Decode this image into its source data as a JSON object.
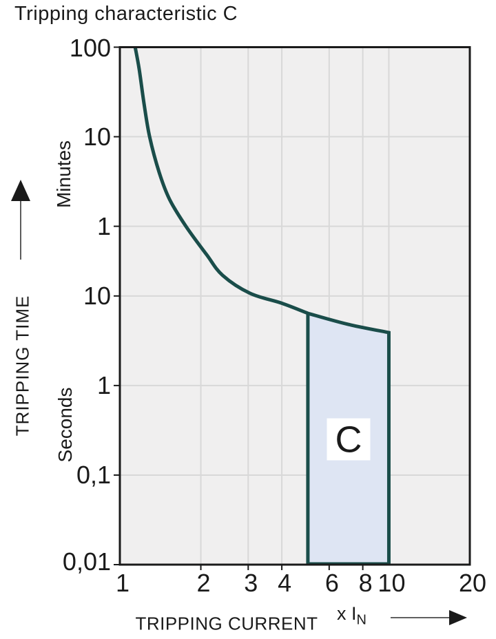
{
  "title": "Tripping characteristic C",
  "chart_data": {
    "type": "line",
    "title": "Tripping characteristic C",
    "xlabel": "TRIPPING CURRENT",
    "x_unit": {
      "prefix": "x I",
      "sub": "N"
    },
    "ylabel": "TRIPPING TIME",
    "y_unit_upper": "Minutes",
    "y_unit_lower": "Seconds",
    "x_scale": "log",
    "y_scale": "log",
    "x_range": [
      1,
      20
    ],
    "y_range_seconds": [
      0.01,
      6000
    ],
    "x_ticks": [
      {
        "label": "1",
        "v": 1
      },
      {
        "label": "2",
        "v": 2
      },
      {
        "label": "3",
        "v": 3
      },
      {
        "label": "4",
        "v": 4
      },
      {
        "label": "6",
        "v": 6
      },
      {
        "label": "8",
        "v": 8
      },
      {
        "label": "10",
        "v": 10
      },
      {
        "label": "20",
        "v": 20
      }
    ],
    "y_ticks": [
      {
        "label": "100",
        "t": 6000
      },
      {
        "label": "10",
        "t": 600
      },
      {
        "label": "1",
        "t": 60
      },
      {
        "label": "10",
        "t": 10
      },
      {
        "label": "1",
        "t": 1
      },
      {
        "label": "0,1",
        "t": 0.1
      },
      {
        "label": "0,01",
        "t": 0.01
      }
    ],
    "x_gridlines": [
      2,
      3,
      4,
      6,
      8,
      10
    ],
    "y_gridlines": [
      0.1,
      1,
      10,
      60,
      600
    ],
    "x_bottom_stub_ticks": [
      2,
      3,
      4,
      6,
      8
    ],
    "curve": {
      "name": "thermal-trip-curve",
      "points": [
        [
          1.14,
          6000
        ],
        [
          1.18,
          3400
        ],
        [
          1.23,
          1400
        ],
        [
          1.29,
          600
        ],
        [
          1.4,
          240
        ],
        [
          1.53,
          120
        ],
        [
          1.76,
          60
        ],
        [
          2.1,
          29
        ],
        [
          2.41,
          17
        ],
        [
          3.05,
          10.7
        ],
        [
          4.0,
          8.3
        ],
        [
          5.0,
          6.4
        ]
      ]
    },
    "band": {
      "label": "C",
      "x_from": 5,
      "x_to": 10,
      "t_bottom": 0.01,
      "top_points": [
        [
          5,
          6.4
        ],
        [
          7,
          4.85
        ],
        [
          10,
          3.9
        ]
      ]
    },
    "colors": {
      "curve": "#1a4d4a",
      "band_fill": "#dee5f3",
      "plot_bg": "#f0efef",
      "grid": "#d8d8d8",
      "axis": "#1a1a1a"
    }
  }
}
